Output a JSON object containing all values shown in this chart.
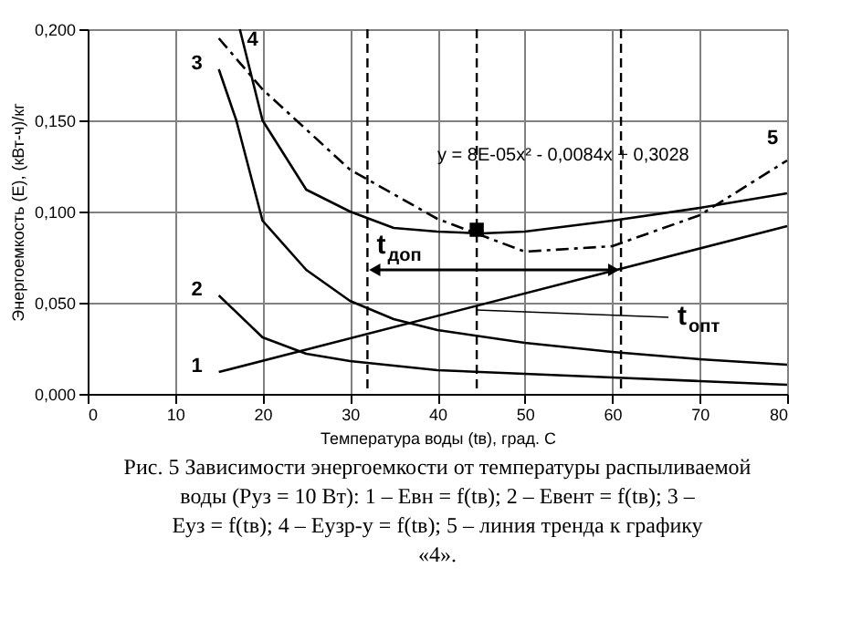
{
  "chart_data": {
    "type": "line",
    "title": "Рис. 5 Зависимости энергоемкости от температуры распыливаемой воды (Pуз = 10 Вт): 1 – Eвн = f(tв); 2 – Eвент = f(tв); 3 – Eуз = f(tв); 4 – Eузр-у = f(tв); 5 – линия тренда к графику «4».",
    "xlabel": "Температура воды (tв), град. С",
    "ylabel": "Энергоемкость (Е), (кВт-ч)/кг",
    "xlim": [
      0,
      80
    ],
    "xticks": [
      0,
      10,
      20,
      30,
      40,
      50,
      60,
      70,
      80
    ],
    "ylim": [
      0,
      0.2
    ],
    "yticks": [
      {
        "value": 0,
        "label": "0,000"
      },
      {
        "value": 0.05,
        "label": "0,050"
      },
      {
        "value": 0.1,
        "label": "0,100"
      },
      {
        "value": 0.15,
        "label": "0,150"
      },
      {
        "value": 0.2,
        "label": "0,200"
      }
    ],
    "grid": true,
    "line_style": "solid",
    "series": [
      {
        "name": "1",
        "color": "#000000",
        "x": [
          15,
          80
        ],
        "values": [
          0.012,
          0.092
        ]
      },
      {
        "name": "2",
        "color": "#000000",
        "x": [
          15,
          20,
          25,
          30,
          40,
          50,
          60,
          70,
          80
        ],
        "values": [
          0.054,
          0.031,
          0.022,
          0.018,
          0.013,
          0.011,
          0.009,
          0.007,
          0.005
        ]
      },
      {
        "name": "3",
        "color": "#000000",
        "x": [
          15,
          17,
          20,
          25,
          30,
          35,
          40,
          50,
          60,
          70,
          80
        ],
        "values": [
          0.178,
          0.15,
          0.095,
          0.068,
          0.051,
          0.041,
          0.035,
          0.028,
          0.023,
          0.019,
          0.016
        ]
      },
      {
        "name": "4",
        "color": "#000000",
        "x": [
          17.4,
          20,
          25,
          30,
          35,
          40,
          45,
          50,
          60,
          70,
          80
        ],
        "values": [
          0.2,
          0.15,
          0.112,
          0.1,
          0.091,
          0.089,
          0.088,
          0.089,
          0.095,
          0.102,
          0.11
        ]
      },
      {
        "name": "5",
        "color": "#000000",
        "line_style": "dashed",
        "x": [
          15,
          20,
          30,
          40,
          50,
          60,
          70,
          80
        ],
        "values": [
          0.195,
          0.167,
          0.123,
          0.096,
          0.078,
          0.081,
          0.098,
          0.128
        ]
      },
      {
        "type": "scatter",
        "marker": "square",
        "color": "#000000",
        "x": [
          44.5
        ],
        "values": [
          0.09
        ]
      }
    ],
    "ref_lines": [
      {
        "axis": "x",
        "value": 32,
        "line_style": "dashed",
        "color": "#000000",
        "label": "t$_{доп}$"
      },
      {
        "axis": "x",
        "value": 44.5,
        "line_style": "dashed",
        "color": "#000000",
        "label": "t$_{опт}$"
      },
      {
        "axis": "x",
        "value": 61,
        "line_style": "dashed",
        "color": "#000000"
      }
    ],
    "annotations": [
      "y = 8E-05x² - 0,0084x + 0,3028"
    ]
  }
}
